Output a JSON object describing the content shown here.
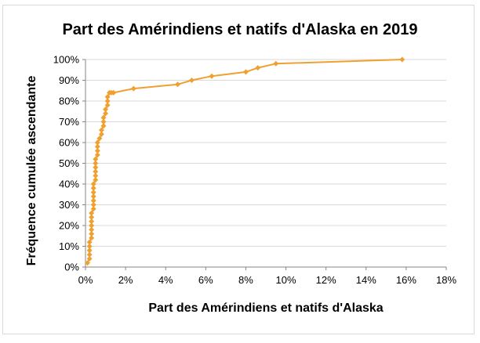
{
  "chart_data": {
    "type": "line",
    "title": "Part des Amérindiens et natifs d'Alaska en 2019",
    "xlabel": "Part des Amérindiens et natifs d'Alaska",
    "ylabel": "Fréquence cumulée ascendante",
    "xlim": [
      0,
      18
    ],
    "ylim": [
      0,
      100
    ],
    "x_ticks": [
      "0%",
      "2%",
      "4%",
      "6%",
      "8%",
      "10%",
      "12%",
      "14%",
      "16%",
      "18%"
    ],
    "y_ticks": [
      "0%",
      "10%",
      "20%",
      "30%",
      "40%",
      "50%",
      "60%",
      "70%",
      "80%",
      "90%",
      "100%"
    ],
    "grid": {
      "y_major": true,
      "x_major": false
    },
    "legend": "none",
    "color": "#f0a030",
    "series": [
      {
        "x": [
          0.1,
          0.2,
          0.2,
          0.2,
          0.2,
          0.2,
          0.3,
          0.3,
          0.3,
          0.3,
          0.3,
          0.3,
          0.3,
          0.4,
          0.4,
          0.4,
          0.4,
          0.4,
          0.4,
          0.4,
          0.5,
          0.5,
          0.5,
          0.5,
          0.5,
          0.5,
          0.6,
          0.6,
          0.6,
          0.6,
          0.7,
          0.8,
          0.8,
          0.9,
          0.9,
          0.9,
          1.0,
          1.0,
          1.1,
          1.1,
          1.1,
          1.2,
          1.2,
          1.3,
          1.4,
          2.4,
          4.6,
          5.3,
          6.3,
          8.0,
          8.6,
          9.5,
          15.8
        ],
        "y": [
          2,
          4,
          6,
          8,
          10,
          12,
          14,
          16,
          18,
          20,
          22,
          24,
          26,
          28,
          30,
          32,
          34,
          36,
          38,
          40,
          42,
          44,
          46,
          48,
          50,
          52,
          54,
          56,
          58,
          60,
          62,
          64,
          66,
          68,
          70,
          72,
          74,
          76,
          78,
          80,
          82,
          84,
          84,
          84,
          84,
          86,
          88,
          90,
          92,
          94,
          96,
          98,
          100
        ]
      }
    ]
  }
}
